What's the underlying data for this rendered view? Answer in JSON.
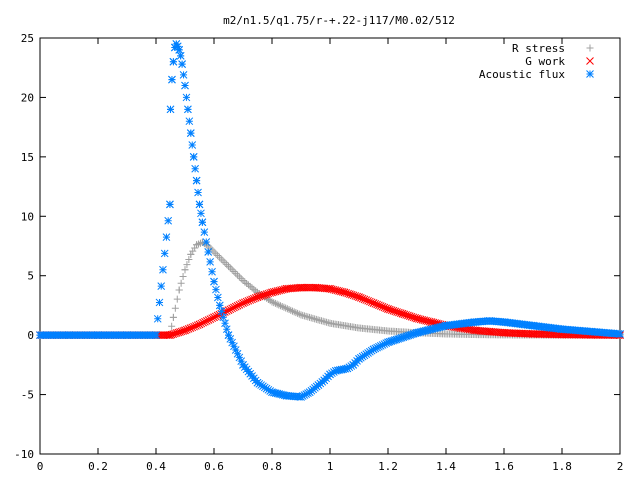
{
  "chart_data": {
    "type": "scatter",
    "title": "m2/n1.5/q1.75/r-+.22-j117/M0.02/512",
    "xlabel": "",
    "ylabel": "",
    "xlim": [
      0,
      2
    ],
    "ylim": [
      -10,
      25
    ],
    "x_ticks": [
      "0",
      "0.2",
      "0.4",
      "0.6",
      "0.8",
      "1",
      "1.2",
      "1.4",
      "1.6",
      "1.8",
      "2"
    ],
    "y_ticks": [
      "-10",
      "-5",
      "0",
      "5",
      "10",
      "15",
      "20",
      "25"
    ],
    "grid": false,
    "legend_position": "top-right",
    "series": [
      {
        "name": "R stress",
        "marker": "plus",
        "color": "#a0a0a0",
        "x": [
          0,
          0.1,
          0.2,
          0.3,
          0.4,
          0.448,
          0.46,
          0.48,
          0.5,
          0.52,
          0.54,
          0.56,
          0.58,
          0.6,
          0.65,
          0.7,
          0.75,
          0.8,
          0.9,
          1.0,
          1.1,
          1.2,
          1.3,
          1.4,
          1.5,
          1.6,
          1.7,
          1.8,
          1.9,
          2.0
        ],
        "y": [
          0,
          0,
          0,
          0,
          0,
          0,
          1.5,
          3.8,
          5.5,
          6.8,
          7.6,
          7.8,
          7.5,
          7.0,
          5.8,
          4.6,
          3.6,
          2.8,
          1.7,
          1.0,
          0.6,
          0.35,
          0.2,
          0.1,
          0.05,
          0.02,
          0.01,
          0.0,
          0.0,
          0.0
        ]
      },
      {
        "name": "G work",
        "marker": "cross",
        "color": "#ff0000",
        "x": [
          0,
          0.1,
          0.2,
          0.3,
          0.4,
          0.448,
          0.5,
          0.55,
          0.6,
          0.65,
          0.7,
          0.75,
          0.8,
          0.85,
          0.9,
          0.95,
          1.0,
          1.05,
          1.1,
          1.15,
          1.2,
          1.25,
          1.3,
          1.35,
          1.4,
          1.45,
          1.5,
          1.55,
          1.6,
          1.7,
          1.8,
          1.9,
          2.0
        ],
        "y": [
          0,
          0,
          0,
          0,
          0,
          0,
          0.4,
          0.9,
          1.5,
          2.1,
          2.7,
          3.2,
          3.6,
          3.9,
          4.0,
          4.0,
          3.9,
          3.6,
          3.2,
          2.7,
          2.2,
          1.8,
          1.4,
          1.1,
          0.8,
          0.6,
          0.4,
          0.3,
          0.2,
          0.1,
          0.05,
          0.02,
          0.0
        ]
      },
      {
        "name": "Acoustic flux",
        "marker": "star",
        "color": "#0080ff",
        "x": [
          0,
          0.1,
          0.2,
          0.3,
          0.4,
          0.448,
          0.45,
          0.455,
          0.46,
          0.465,
          0.47,
          0.475,
          0.48,
          0.485,
          0.49,
          0.5,
          0.51,
          0.52,
          0.53,
          0.54,
          0.55,
          0.56,
          0.58,
          0.6,
          0.62,
          0.65,
          0.7,
          0.75,
          0.8,
          0.85,
          0.9,
          0.93,
          0.96,
          0.98,
          1.0,
          1.02,
          1.04,
          1.06,
          1.08,
          1.1,
          1.15,
          1.2,
          1.3,
          1.4,
          1.5,
          1.55,
          1.6,
          1.7,
          1.8,
          1.9,
          2.0
        ],
        "y": [
          0,
          0,
          0,
          0,
          0,
          11,
          19,
          21.5,
          23,
          24.2,
          24.5,
          24.3,
          24,
          23.5,
          22.8,
          21,
          19,
          17,
          15,
          13,
          11,
          9.5,
          7,
          4.5,
          2.5,
          0,
          -2.5,
          -4,
          -4.8,
          -5.1,
          -5.2,
          -4.8,
          -4.2,
          -3.8,
          -3.3,
          -3.0,
          -2.9,
          -2.8,
          -2.5,
          -2.0,
          -1.2,
          -0.6,
          0.2,
          0.8,
          1.1,
          1.2,
          1.1,
          0.8,
          0.5,
          0.3,
          0.1
        ]
      }
    ]
  }
}
